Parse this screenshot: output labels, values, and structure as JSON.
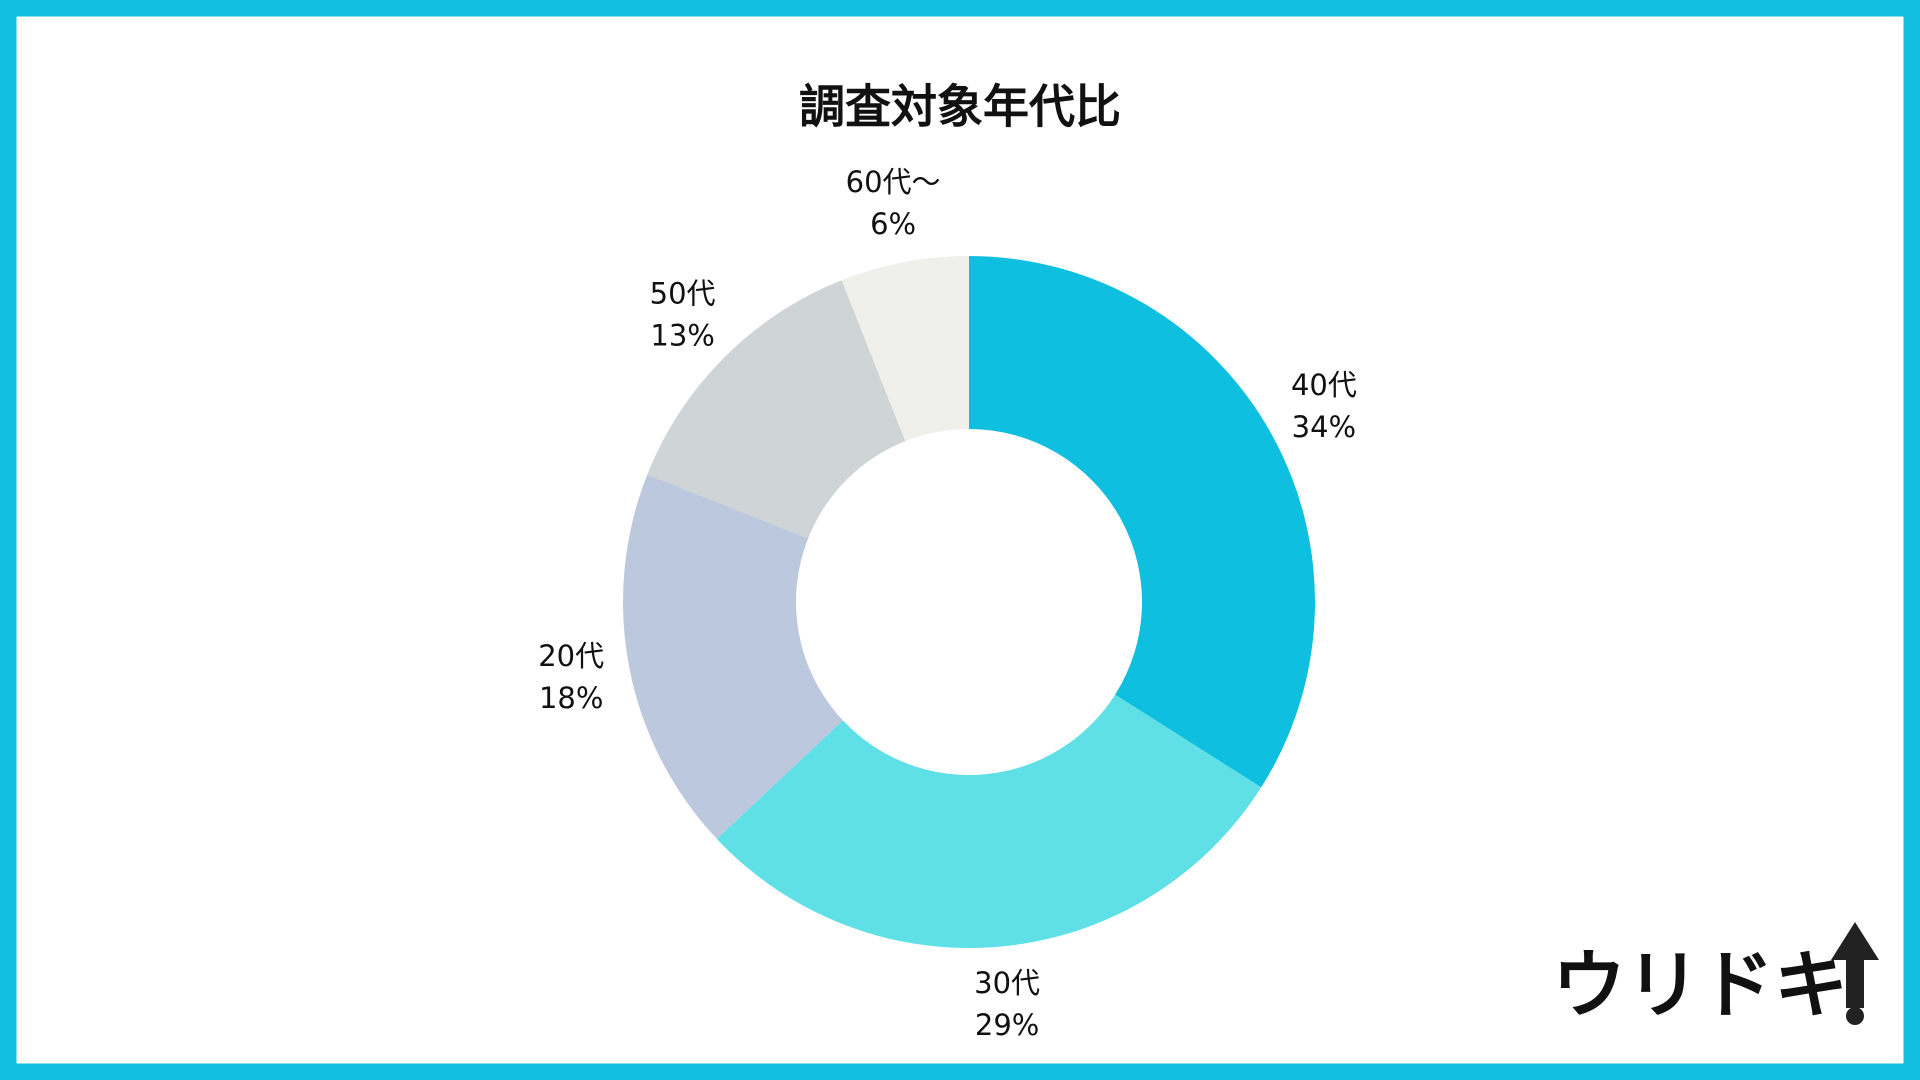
{
  "chart_data": {
    "type": "donut",
    "title": "調査対象年代比",
    "categories": [
      "40代",
      "30代",
      "20代",
      "50代",
      "60代～"
    ],
    "values": [
      34,
      29,
      18,
      13,
      6
    ],
    "value_labels": [
      "34%",
      "29%",
      "18%",
      "13%",
      "6%"
    ],
    "colors": [
      "#0fbfdf",
      "#5fe0e6",
      "#bcc8dd",
      "#cfd4d6",
      "#efefec"
    ]
  },
  "logo": "ウリドキ"
}
